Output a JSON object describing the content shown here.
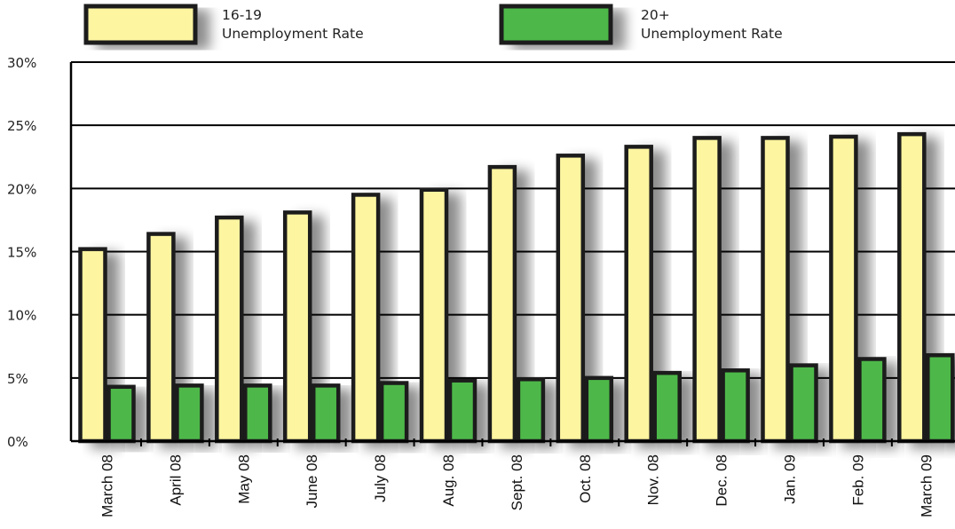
{
  "chart_data": {
    "type": "bar",
    "title": "",
    "xlabel": "",
    "ylabel": "",
    "ylim": [
      0,
      30
    ],
    "yticks": [
      "0%",
      "5%",
      "10%",
      "15%",
      "20%",
      "25%",
      "30%"
    ],
    "categories": [
      "March 08",
      "April 08",
      "May 08",
      "June 08",
      "July 08",
      "Aug. 08",
      "Sept. 08",
      "Oct. 08",
      "Nov. 08",
      "Dec. 08",
      "Jan. 09",
      "Feb. 09",
      "March 09"
    ],
    "series": [
      {
        "name_line1": "16-19",
        "name_line2": "Unemployment Rate",
        "color": "#fdf5a0",
        "values": [
          15.2,
          16.4,
          17.7,
          18.1,
          19.5,
          19.9,
          21.7,
          22.6,
          23.3,
          24.0,
          24.0,
          24.1,
          24.3
        ]
      },
      {
        "name_line1": "20+",
        "name_line2": "Unemployment Rate",
        "color": "#4db848",
        "values": [
          4.3,
          4.4,
          4.4,
          4.4,
          4.6,
          4.8,
          4.9,
          5.0,
          5.4,
          5.6,
          6.0,
          6.5,
          6.8
        ]
      }
    ],
    "grid": true,
    "legend": "top"
  }
}
